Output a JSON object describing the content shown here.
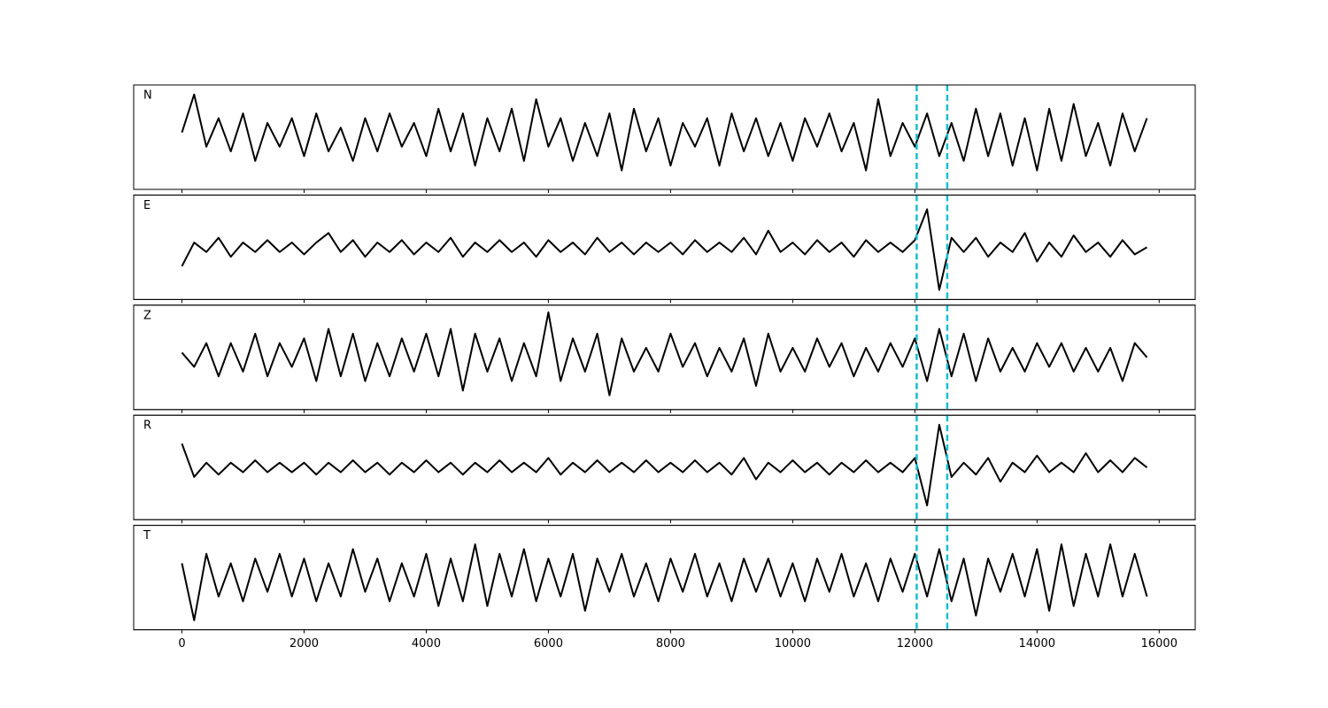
{
  "chart_data": {
    "type": "line",
    "x": [
      0,
      200,
      400,
      600,
      800,
      1000,
      1200,
      1400,
      1600,
      1800,
      2000,
      2200,
      2400,
      2600,
      2800,
      3000,
      3200,
      3400,
      3600,
      3800,
      4000,
      4200,
      4400,
      4600,
      4800,
      5000,
      5200,
      5400,
      5600,
      5800,
      6000,
      6200,
      6400,
      6600,
      6800,
      7000,
      7200,
      7400,
      7600,
      7800,
      8000,
      8200,
      8400,
      8600,
      8800,
      9000,
      9200,
      9400,
      9600,
      9800,
      10000,
      10200,
      10400,
      10600,
      10800,
      11000,
      11200,
      11400,
      11600,
      11800,
      12000,
      12200,
      12400,
      12600,
      12800,
      13000,
      13200,
      13400,
      13600,
      13800,
      14000,
      14200,
      14400,
      14600,
      14800,
      15000,
      15200,
      15400,
      15600,
      15800
    ],
    "xlim": [
      -790,
      16590
    ],
    "xticks": [
      0,
      2000,
      4000,
      6000,
      8000,
      10000,
      12000,
      14000,
      16000
    ],
    "ylim": [
      -1.1,
      1.1
    ],
    "vlines": [
      12030,
      12530
    ],
    "vline_color": "#17becf",
    "vline_style": "dashed",
    "series": [
      {
        "name": "N",
        "color": "#000000",
        "values": [
          0.1,
          0.9,
          -0.2,
          0.4,
          -0.3,
          0.5,
          -0.5,
          0.3,
          -0.2,
          0.4,
          -0.4,
          0.5,
          -0.3,
          0.2,
          -0.5,
          0.4,
          -0.3,
          0.5,
          -0.2,
          0.3,
          -0.4,
          0.6,
          -0.3,
          0.5,
          -0.6,
          0.4,
          -0.3,
          0.6,
          -0.5,
          0.8,
          -0.2,
          0.4,
          -0.5,
          0.3,
          -0.4,
          0.5,
          -0.7,
          0.6,
          -0.3,
          0.4,
          -0.6,
          0.3,
          -0.2,
          0.4,
          -0.6,
          0.5,
          -0.3,
          0.4,
          -0.4,
          0.3,
          -0.5,
          0.4,
          -0.2,
          0.5,
          -0.3,
          0.3,
          -0.7,
          0.8,
          -0.4,
          0.3,
          -0.2,
          0.5,
          -0.4,
          0.3,
          -0.5,
          0.6,
          -0.4,
          0.5,
          -0.6,
          0.4,
          -0.7,
          0.6,
          -0.5,
          0.7,
          -0.4,
          0.3,
          -0.6,
          0.5,
          -0.3,
          0.4
        ]
      },
      {
        "name": "E",
        "color": "#000000",
        "values": [
          -0.4,
          0.1,
          -0.1,
          0.2,
          -0.2,
          0.1,
          -0.1,
          0.15,
          -0.1,
          0.1,
          -0.15,
          0.1,
          0.3,
          -0.1,
          0.15,
          -0.2,
          0.1,
          -0.1,
          0.15,
          -0.15,
          0.1,
          -0.1,
          0.2,
          -0.2,
          0.1,
          -0.1,
          0.15,
          -0.1,
          0.1,
          -0.2,
          0.15,
          -0.1,
          0.1,
          -0.15,
          0.2,
          -0.1,
          0.1,
          -0.15,
          0.1,
          -0.1,
          0.1,
          -0.15,
          0.15,
          -0.1,
          0.1,
          -0.1,
          0.2,
          -0.15,
          0.35,
          -0.1,
          0.1,
          -0.15,
          0.15,
          -0.1,
          0.1,
          -0.2,
          0.15,
          -0.1,
          0.1,
          -0.1,
          0.15,
          0.8,
          -0.9,
          0.2,
          -0.1,
          0.2,
          -0.2,
          0.1,
          -0.1,
          0.3,
          -0.3,
          0.1,
          -0.2,
          0.25,
          -0.1,
          0.1,
          -0.2,
          0.15,
          -0.15,
          0.0
        ]
      },
      {
        "name": "Z",
        "color": "#000000",
        "values": [
          0.1,
          -0.2,
          0.3,
          -0.4,
          0.3,
          -0.3,
          0.5,
          -0.4,
          0.3,
          -0.2,
          0.4,
          -0.5,
          0.6,
          -0.4,
          0.5,
          -0.5,
          0.3,
          -0.4,
          0.4,
          -0.3,
          0.5,
          -0.4,
          0.6,
          -0.7,
          0.5,
          -0.3,
          0.4,
          -0.5,
          0.3,
          -0.4,
          0.95,
          -0.5,
          0.4,
          -0.3,
          0.5,
          -0.8,
          0.4,
          -0.3,
          0.2,
          -0.3,
          0.5,
          -0.2,
          0.3,
          -0.4,
          0.2,
          -0.3,
          0.4,
          -0.6,
          0.5,
          -0.3,
          0.2,
          -0.3,
          0.4,
          -0.2,
          0.3,
          -0.4,
          0.2,
          -0.3,
          0.3,
          -0.2,
          0.4,
          -0.5,
          0.6,
          -0.4,
          0.5,
          -0.5,
          0.4,
          -0.3,
          0.2,
          -0.3,
          0.3,
          -0.2,
          0.3,
          -0.3,
          0.2,
          -0.3,
          0.2,
          -0.5,
          0.3,
          0.0
        ]
      },
      {
        "name": "R",
        "color": "#000000",
        "values": [
          0.5,
          -0.2,
          0.1,
          -0.15,
          0.1,
          -0.1,
          0.15,
          -0.1,
          0.1,
          -0.1,
          0.1,
          -0.15,
          0.1,
          -0.1,
          0.15,
          -0.1,
          0.1,
          -0.15,
          0.1,
          -0.1,
          0.15,
          -0.1,
          0.1,
          -0.15,
          0.1,
          -0.1,
          0.15,
          -0.1,
          0.1,
          -0.1,
          0.2,
          -0.15,
          0.1,
          -0.1,
          0.15,
          -0.1,
          0.1,
          -0.1,
          0.15,
          -0.1,
          0.1,
          -0.1,
          0.15,
          -0.1,
          0.1,
          -0.15,
          0.2,
          -0.25,
          0.1,
          -0.1,
          0.15,
          -0.1,
          0.1,
          -0.15,
          0.1,
          -0.1,
          0.15,
          -0.1,
          0.1,
          -0.1,
          0.2,
          -0.8,
          0.9,
          -0.2,
          0.1,
          -0.15,
          0.2,
          -0.3,
          0.1,
          -0.1,
          0.25,
          -0.1,
          0.1,
          -0.1,
          0.3,
          -0.1,
          0.15,
          -0.1,
          0.2,
          0.0
        ]
      },
      {
        "name": "T",
        "color": "#000000",
        "values": [
          0.3,
          -0.9,
          0.5,
          -0.4,
          0.3,
          -0.5,
          0.4,
          -0.3,
          0.5,
          -0.4,
          0.4,
          -0.5,
          0.3,
          -0.4,
          0.6,
          -0.3,
          0.4,
          -0.5,
          0.3,
          -0.4,
          0.5,
          -0.6,
          0.4,
          -0.5,
          0.7,
          -0.6,
          0.5,
          -0.4,
          0.6,
          -0.5,
          0.4,
          -0.4,
          0.5,
          -0.7,
          0.4,
          -0.3,
          0.5,
          -0.4,
          0.3,
          -0.5,
          0.4,
          -0.3,
          0.5,
          -0.4,
          0.3,
          -0.5,
          0.4,
          -0.3,
          0.4,
          -0.4,
          0.3,
          -0.5,
          0.4,
          -0.3,
          0.5,
          -0.4,
          0.3,
          -0.5,
          0.4,
          -0.3,
          0.5,
          -0.4,
          0.6,
          -0.5,
          0.4,
          -0.8,
          0.4,
          -0.3,
          0.5,
          -0.4,
          0.6,
          -0.7,
          0.7,
          -0.6,
          0.5,
          -0.4,
          0.7,
          -0.4,
          0.5,
          -0.4
        ]
      }
    ]
  }
}
